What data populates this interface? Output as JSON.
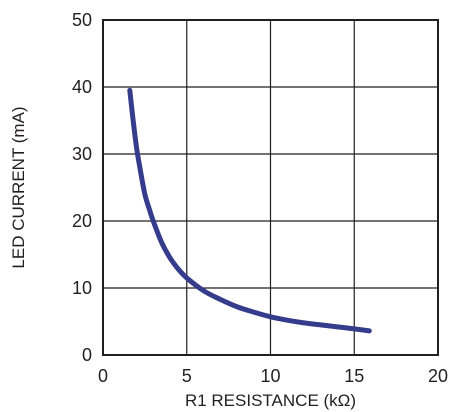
{
  "chart_data": {
    "type": "line",
    "title": "",
    "xlabel": "R1 RESISTANCE (kΩ)",
    "ylabel": "LED CURRENT (mA)",
    "xlim": [
      0,
      20
    ],
    "ylim": [
      0,
      50
    ],
    "x_ticks": [
      "0",
      "5",
      "10",
      "15",
      "20"
    ],
    "y_ticks": [
      "0",
      "10",
      "20",
      "30",
      "40",
      "50"
    ],
    "grid": true,
    "legend": "none",
    "series": [
      {
        "color": "#353c8c",
        "x": [
          1.6,
          1.8,
          2.0,
          2.2,
          2.5,
          2.8,
          3.0,
          3.5,
          4.0,
          4.5,
          5.0,
          6.0,
          7.0,
          8.0,
          9.0,
          10.0,
          11.0,
          12.0,
          13.0,
          14.0,
          15.0,
          15.9
        ],
        "y": [
          39.5,
          35.0,
          31.0,
          28.0,
          24.0,
          21.5,
          20.0,
          16.8,
          14.5,
          12.8,
          11.5,
          9.6,
          8.3,
          7.2,
          6.4,
          5.7,
          5.2,
          4.8,
          4.5,
          4.2,
          3.9,
          3.6
        ]
      }
    ]
  }
}
